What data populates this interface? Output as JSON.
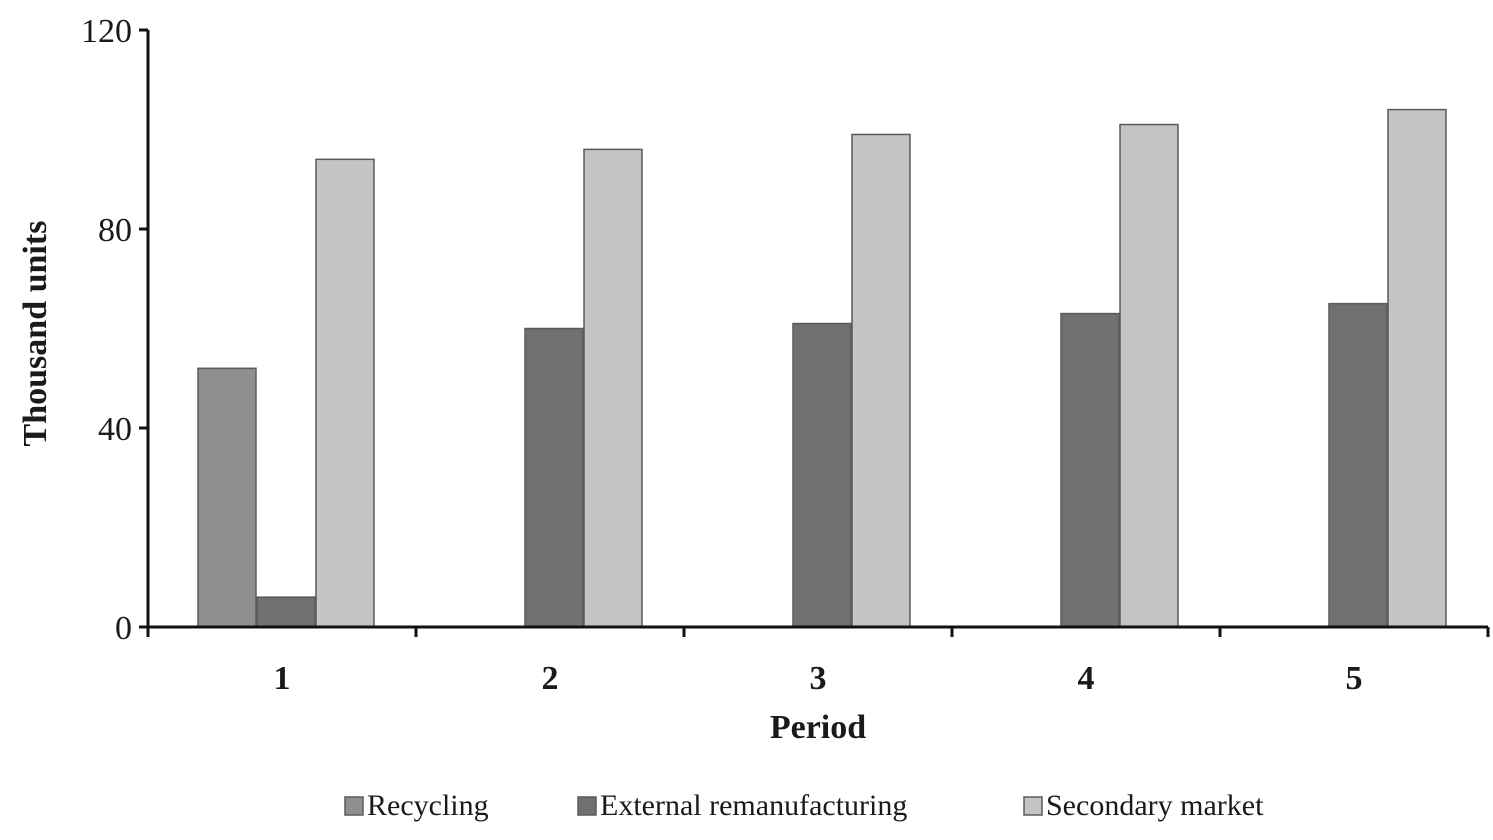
{
  "chart_data": {
    "type": "bar",
    "title": "",
    "xlabel": "Period",
    "ylabel": "Thousand units",
    "categories": [
      "1",
      "2",
      "3",
      "4",
      "5"
    ],
    "ylim": [
      0,
      120
    ],
    "yticks": [
      0,
      40,
      80,
      120
    ],
    "grid": false,
    "legend_position": "bottom",
    "series": [
      {
        "name": "Recycling",
        "color": "#8f8f8f",
        "values": [
          52,
          0,
          0,
          0,
          0
        ]
      },
      {
        "name": "External remanufacturing",
        "color": "#707070",
        "values": [
          6,
          60,
          61,
          63,
          65
        ]
      },
      {
        "name": "Secondary market",
        "color": "#c4c4c4",
        "values": [
          94,
          96,
          99,
          101,
          104
        ]
      }
    ]
  }
}
